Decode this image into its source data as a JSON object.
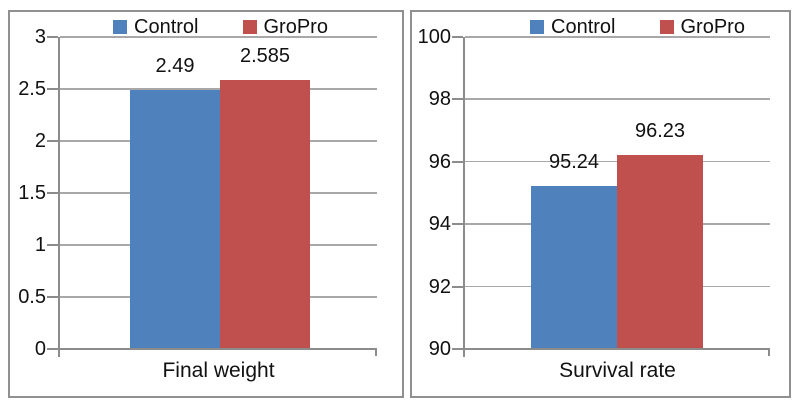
{
  "colors": {
    "control_series": "#4F81BD",
    "gropro_series": "#C0504D",
    "gridline": "#A8A8A8",
    "axis_line": "#8C8C8C",
    "panel_border": "#909090",
    "text": "#111111",
    "background": "#FFFFFF"
  },
  "chart_data": [
    {
      "type": "bar",
      "title": "",
      "xlabel": "Final weight",
      "categories": [
        "Final weight"
      ],
      "series": [
        {
          "name": "Control",
          "color": "#4F81BD",
          "values": [
            2.49
          ]
        },
        {
          "name": "GroPro",
          "color": "#C0504D",
          "values": [
            2.585
          ]
        }
      ],
      "data_labels": [
        "2.49",
        "2.585"
      ],
      "ylim": [
        0,
        3
      ],
      "ytick_labels": [
        "0",
        "0.5",
        "1",
        "1.5",
        "2",
        "2.5",
        "3"
      ],
      "grid": true,
      "legend_position": "top"
    },
    {
      "type": "bar",
      "title": "",
      "xlabel": "Survival rate",
      "categories": [
        "Survival rate"
      ],
      "series": [
        {
          "name": "Control",
          "color": "#4F81BD",
          "values": [
            95.24
          ]
        },
        {
          "name": "GroPro",
          "color": "#C0504D",
          "values": [
            96.23
          ]
        }
      ],
      "data_labels": [
        "95.24",
        "96.23"
      ],
      "ylim": [
        90,
        100
      ],
      "ytick_labels": [
        "90",
        "92",
        "94",
        "96",
        "98",
        "100"
      ],
      "grid": true,
      "legend_position": "top"
    }
  ]
}
